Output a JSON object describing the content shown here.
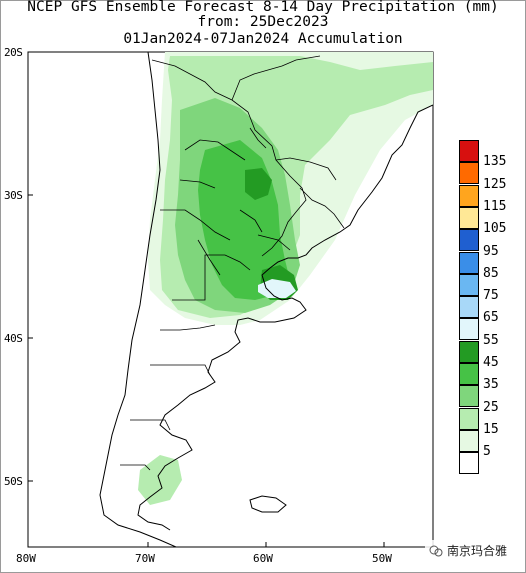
{
  "title": {
    "line1": "NCEP GFS Ensemble Forecast 8-14 Day Precipitation (mm)",
    "line2": "from: 25Dec2023",
    "line3": "01Jan2024-07Jan2024 Accumulation"
  },
  "axes": {
    "lat_labels": [
      "20S",
      "30S",
      "40S",
      "50S"
    ],
    "lon_labels": [
      "80W",
      "70W",
      "60W",
      "50W"
    ]
  },
  "legend": {
    "labels": [
      "135",
      "125",
      "115",
      "105",
      "95",
      "85",
      "75",
      "65",
      "55",
      "45",
      "35",
      "25",
      "15",
      "5"
    ],
    "colors": [
      "#d7100f",
      "#ff6a00",
      "#ffa51e",
      "#ffe896",
      "#1f5fd0",
      "#3a8ee8",
      "#6ab7f2",
      "#a8d8f8",
      "#e2f6fb",
      "#239b23",
      "#46c246",
      "#7fd67c",
      "#b6ecb0",
      "#e6f9e3",
      "#ffffff"
    ]
  },
  "colors": {
    "background": "#ffffff",
    "coastline": "#000000",
    "light_green": "#b6ecb0",
    "mid_green": "#7fd67c",
    "green": "#46c246",
    "dark_green": "#239b23",
    "pale_cyan": "#e2f6fb"
  },
  "watermark": "南京玛合雅"
}
